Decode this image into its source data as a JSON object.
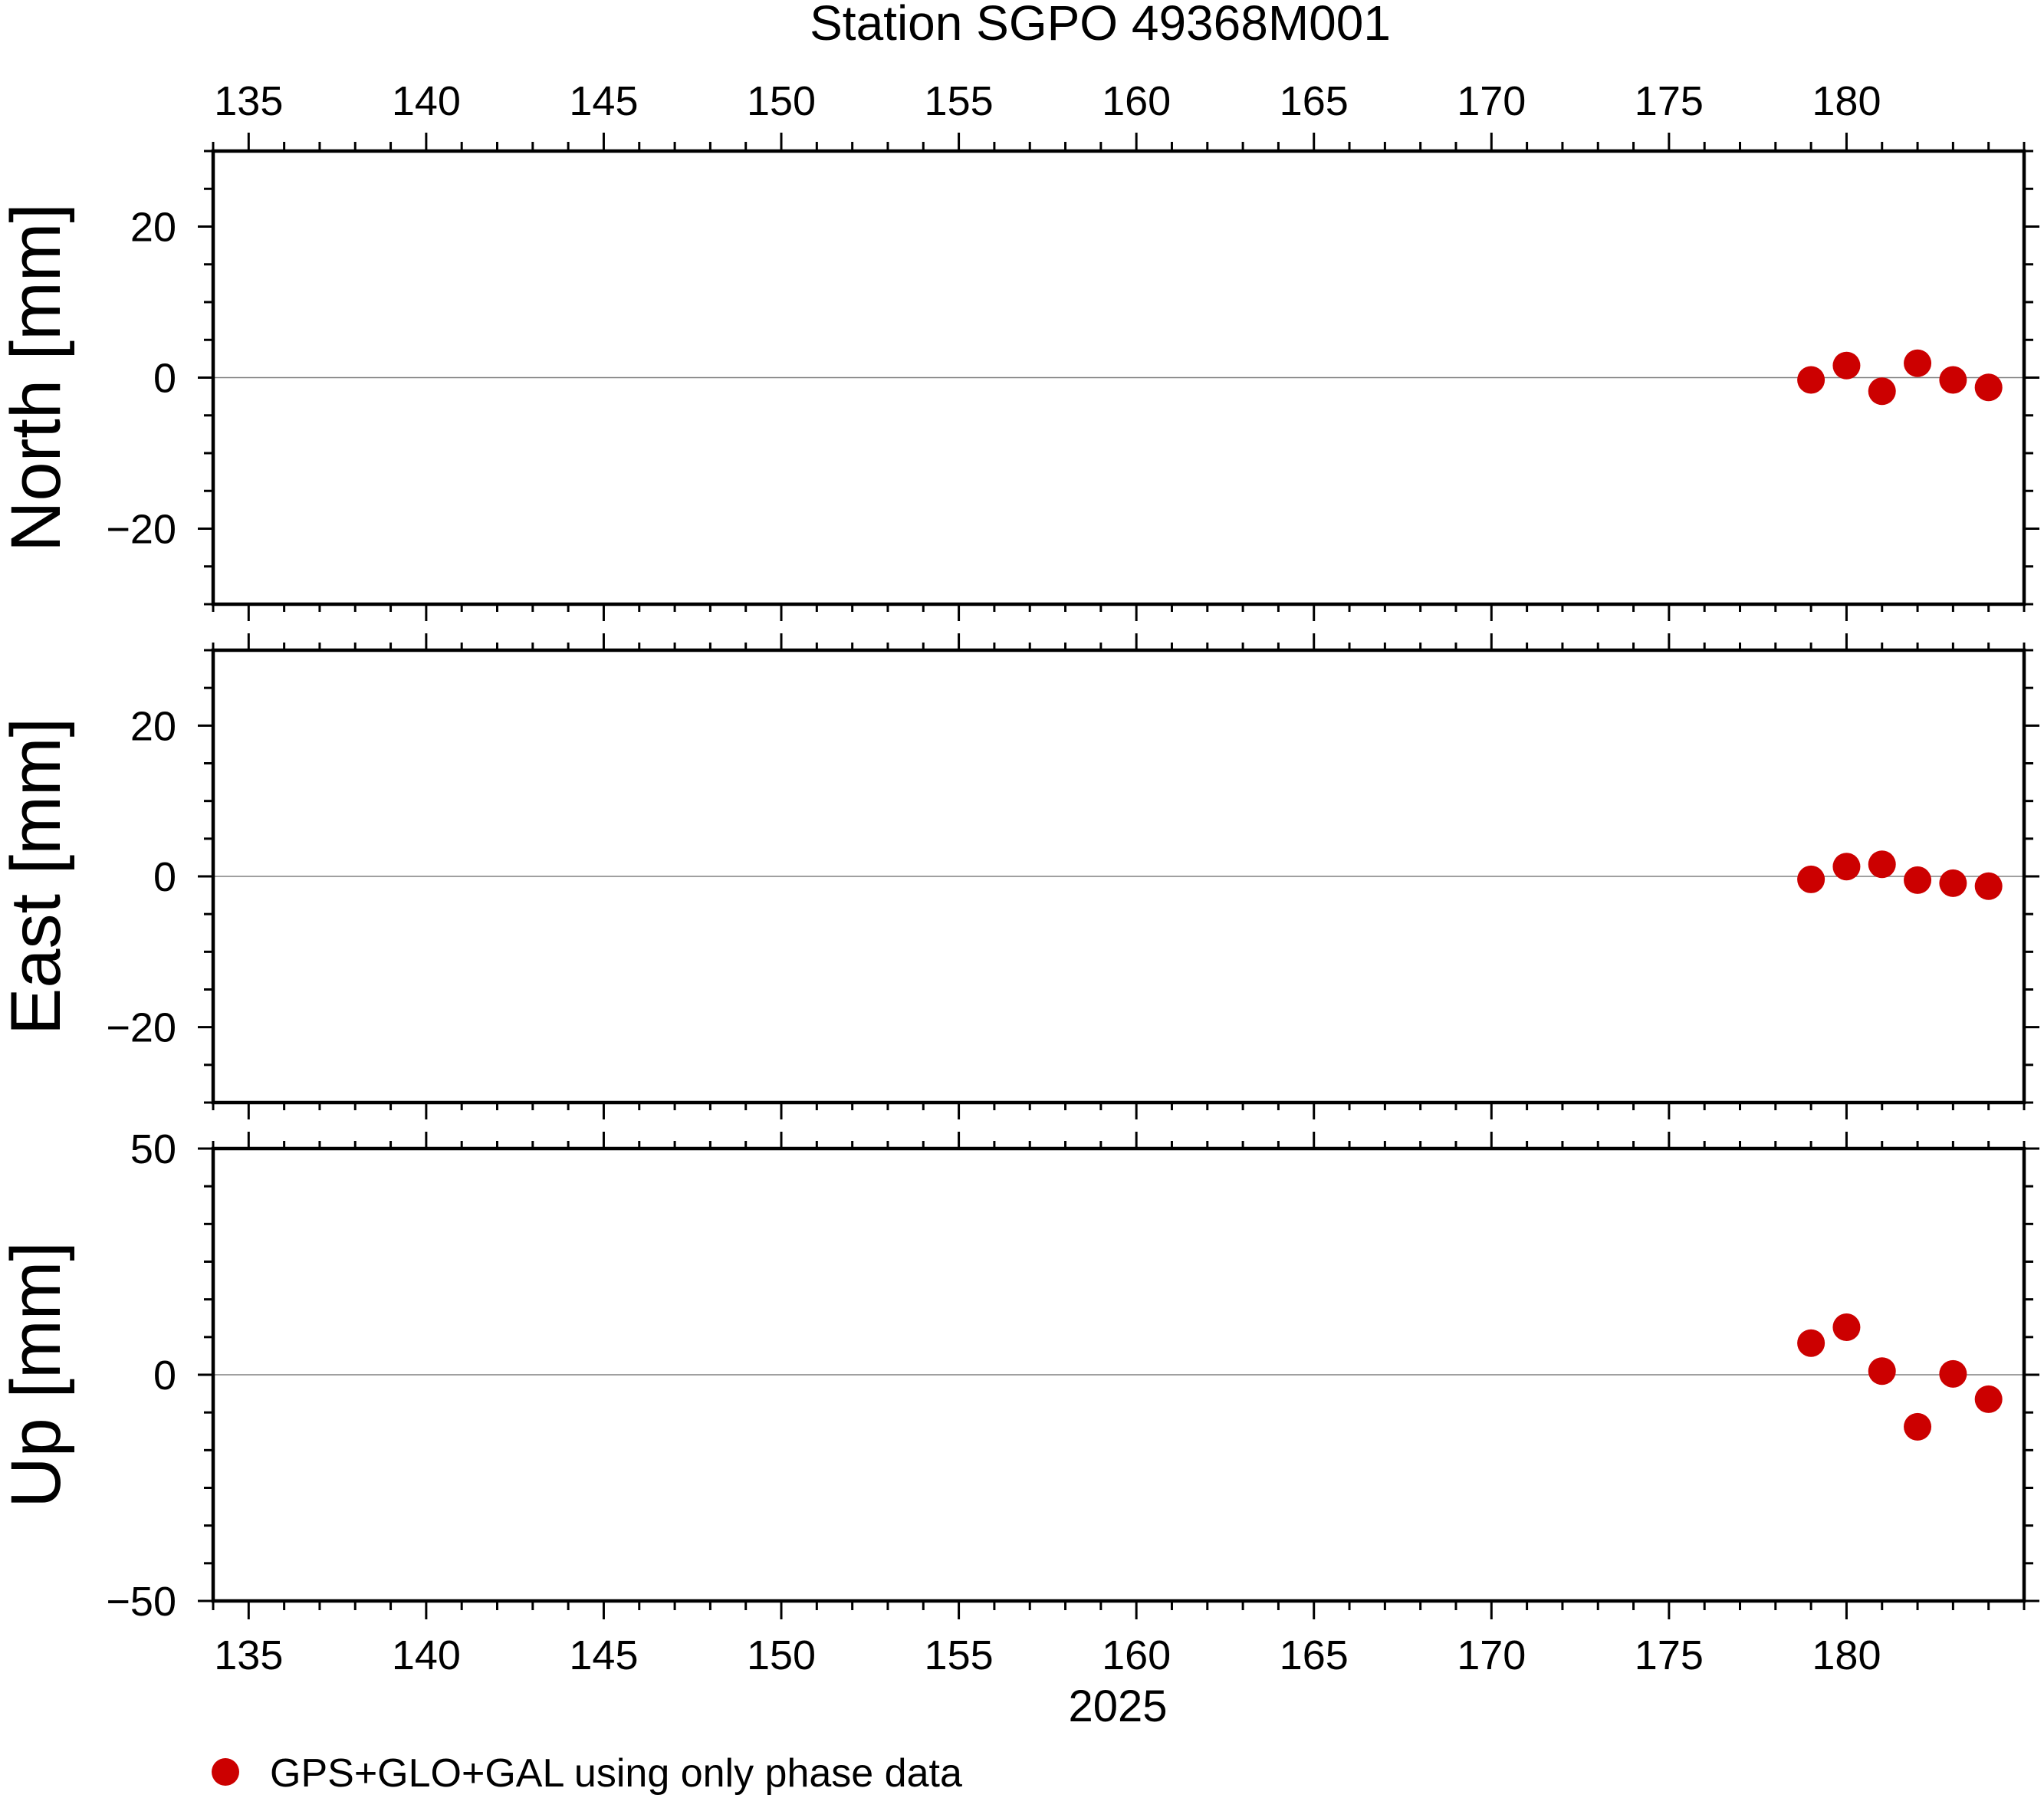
{
  "chart_data": {
    "type": "scatter",
    "title": "Station SGPO 49368M001",
    "x_axis": {
      "label": "2025",
      "range": [
        134,
        185
      ],
      "tick_values": [
        135,
        140,
        145,
        150,
        155,
        160,
        165,
        170,
        175,
        180
      ],
      "tick_labels": [
        "135",
        "140",
        "145",
        "150",
        "155",
        "160",
        "165",
        "170",
        "175",
        "180"
      ]
    },
    "series_style": {
      "color": "#cc0000",
      "marker": "circle"
    },
    "legend": {
      "position": "bottom-left",
      "label": "GPS+GLO+GAL using only phase data"
    },
    "panels": [
      {
        "key": "north",
        "ylabel": "North [mm]",
        "ylim": [
          -30,
          30
        ],
        "y_ticks": [
          20,
          0,
          -20
        ],
        "y_tick_labels": [
          "20",
          "0",
          "−20"
        ],
        "points": [
          {
            "x": 179,
            "y": -0.3
          },
          {
            "x": 180,
            "y": 1.6
          },
          {
            "x": 181,
            "y": -1.8
          },
          {
            "x": 182,
            "y": 1.9
          },
          {
            "x": 183,
            "y": -0.3
          },
          {
            "x": 184,
            "y": -1.3
          }
        ]
      },
      {
        "key": "east",
        "ylabel": "East [mm]",
        "ylim": [
          -30,
          30
        ],
        "y_ticks": [
          20,
          0,
          -20
        ],
        "y_tick_labels": [
          "20",
          "0",
          "−20"
        ],
        "points": [
          {
            "x": 179,
            "y": -0.4
          },
          {
            "x": 180,
            "y": 1.3
          },
          {
            "x": 181,
            "y": 1.6
          },
          {
            "x": 182,
            "y": -0.5
          },
          {
            "x": 183,
            "y": -0.9
          },
          {
            "x": 184,
            "y": -1.3
          }
        ]
      },
      {
        "key": "up",
        "ylabel": "Up [mm]",
        "ylim": [
          -50,
          50
        ],
        "y_ticks": [
          50,
          0,
          -50
        ],
        "y_tick_labels": [
          "50",
          "0",
          "−50"
        ],
        "points": [
          {
            "x": 179,
            "y": 7.0
          },
          {
            "x": 180,
            "y": 10.5
          },
          {
            "x": 181,
            "y": 0.8
          },
          {
            "x": 182,
            "y": -11.5
          },
          {
            "x": 183,
            "y": 0.2
          },
          {
            "x": 184,
            "y": -5.4
          }
        ]
      }
    ]
  }
}
